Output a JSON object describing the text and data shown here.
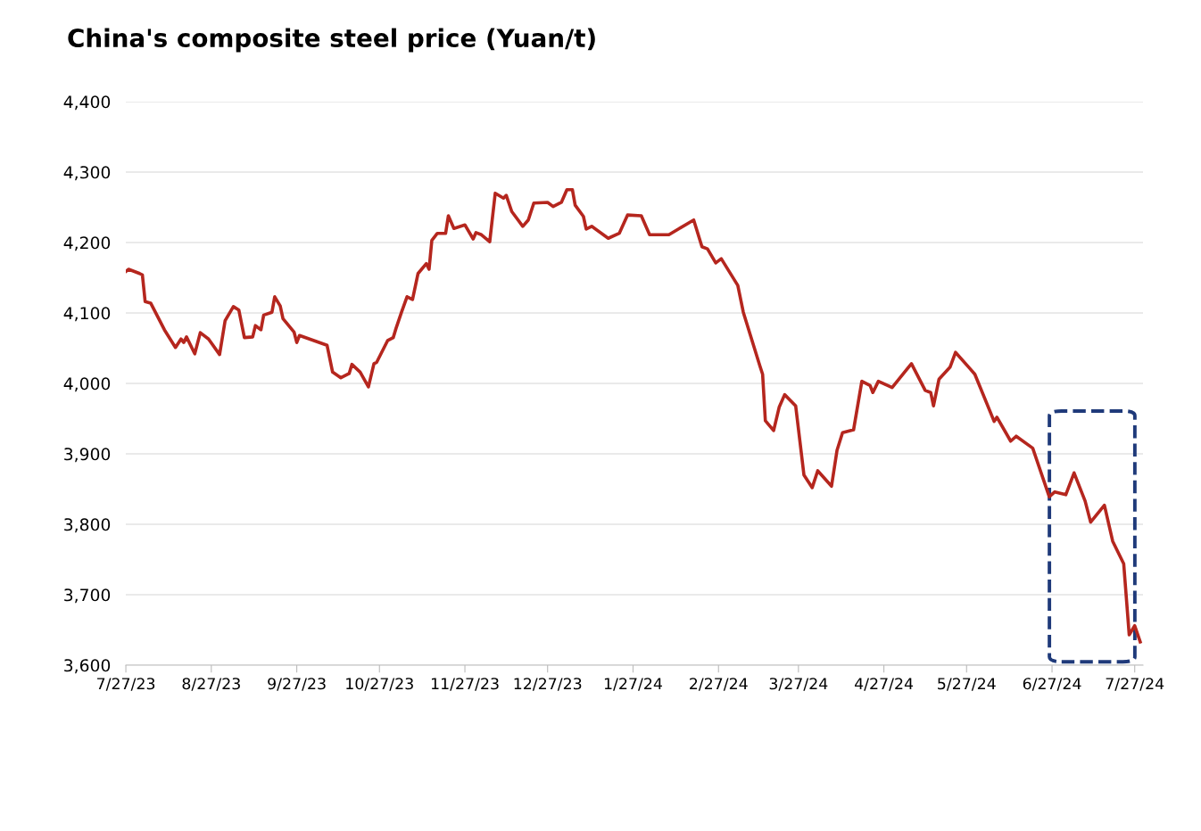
{
  "chart_data": {
    "type": "line",
    "title": "China's composite steel price (Yuan/t)",
    "x": [
      "2023-07-27",
      "2023-07-28",
      "2023-08-01",
      "2023-08-02",
      "2023-08-03",
      "2023-08-05",
      "2023-08-10",
      "2023-08-14",
      "2023-08-16",
      "2023-08-17",
      "2023-08-18",
      "2023-08-21",
      "2023-08-23",
      "2023-08-26",
      "2023-08-30",
      "2023-09-01",
      "2023-09-04",
      "2023-09-06",
      "2023-09-08",
      "2023-09-11",
      "2023-09-12",
      "2023-09-14",
      "2023-09-15",
      "2023-09-18",
      "2023-09-19",
      "2023-09-21",
      "2023-09-22",
      "2023-09-26",
      "2023-09-27",
      "2023-09-28",
      "2023-10-08",
      "2023-10-10",
      "2023-10-13",
      "2023-10-16",
      "2023-10-17",
      "2023-10-20",
      "2023-10-23",
      "2023-10-25",
      "2023-10-26",
      "2023-10-30",
      "2023-11-01",
      "2023-11-02",
      "2023-11-04",
      "2023-11-06",
      "2023-11-08",
      "2023-11-10",
      "2023-11-13",
      "2023-11-14",
      "2023-11-15",
      "2023-11-17",
      "2023-11-20",
      "2023-11-21",
      "2023-11-23",
      "2023-11-27",
      "2023-11-30",
      "2023-12-01",
      "2023-12-03",
      "2023-12-06",
      "2023-12-08",
      "2023-12-11",
      "2023-12-12",
      "2023-12-14",
      "2023-12-18",
      "2023-12-20",
      "2023-12-22",
      "2023-12-27",
      "2023-12-29",
      "2024-01-01",
      "2024-01-03",
      "2024-01-05",
      "2024-01-06",
      "2024-01-09",
      "2024-01-10",
      "2024-01-12",
      "2024-01-18",
      "2024-01-22",
      "2024-01-25",
      "2024-01-30",
      "2024-02-02",
      "2024-02-09",
      "2024-02-18",
      "2024-02-21",
      "2024-02-23",
      "2024-02-26",
      "2024-02-28",
      "2024-03-05",
      "2024-03-07",
      "2024-03-13",
      "2024-03-14",
      "2024-03-15",
      "2024-03-18",
      "2024-03-20",
      "2024-03-22",
      "2024-03-26",
      "2024-03-29",
      "2024-04-01",
      "2024-04-03",
      "2024-04-08",
      "2024-04-10",
      "2024-04-12",
      "2024-04-16",
      "2024-04-19",
      "2024-04-22",
      "2024-04-23",
      "2024-04-25",
      "2024-04-30",
      "2024-05-07",
      "2024-05-12",
      "2024-05-14",
      "2024-05-15",
      "2024-05-17",
      "2024-05-21",
      "2024-05-23",
      "2024-05-28",
      "2024-05-30",
      "2024-06-06",
      "2024-06-07",
      "2024-06-12",
      "2024-06-14",
      "2024-06-20",
      "2024-06-26",
      "2024-06-28",
      "2024-07-02",
      "2024-07-05",
      "2024-07-09",
      "2024-07-11",
      "2024-07-16",
      "2024-07-19",
      "2024-07-23",
      "2024-07-25",
      "2024-07-27",
      "2024-07-29"
    ],
    "series": [
      {
        "color": "#b5261e",
        "values": [
          4159,
          4162,
          4156,
          4154,
          4116,
          4114,
          4076,
          4051,
          4063,
          4058,
          4066,
          4042,
          4072,
          4063,
          4041,
          4089,
          4109,
          4104,
          4065,
          4066,
          4082,
          4076,
          4097,
          4101,
          4123,
          4110,
          4092,
          4073,
          4058,
          4068,
          4054,
          4016,
          4008,
          4014,
          4027,
          4016,
          3995,
          4028,
          4030,
          4061,
          4065,
          4078,
          4101,
          4123,
          4119,
          4156,
          4170,
          4162,
          4203,
          4213,
          4213,
          4238,
          4220,
          4225,
          4205,
          4214,
          4211,
          4201,
          4270,
          4263,
          4267,
          4244,
          4223,
          4232,
          4256,
          4257,
          4251,
          4257,
          4275,
          4275,
          4253,
          4237,
          4219,
          4223,
          4206,
          4213,
          4239,
          4238,
          4211,
          4211,
          4232,
          4194,
          4191,
          4171,
          4177,
          4139,
          4101,
          4025,
          4013,
          3947,
          3933,
          3966,
          3984,
          3968,
          3870,
          3852,
          3876,
          3854,
          3905,
          3930,
          3934,
          4003,
          3997,
          3987,
          4003,
          3994,
          4028,
          3990,
          3987,
          3968,
          4006,
          4023,
          4044,
          4022,
          4013,
          3946,
          3952,
          3918,
          3925,
          3908,
          3839,
          3846,
          3842,
          3873,
          3833,
          3803,
          3827,
          3776,
          3744,
          3643,
          3656,
          3633
        ]
      }
    ],
    "xlim": [
      "2023-07-27",
      "2024-07-30"
    ],
    "xticks": [
      {
        "value": "2023-07-27",
        "label": "7/27/23"
      },
      {
        "value": "2023-08-27",
        "label": "8/27/23"
      },
      {
        "value": "2023-09-27",
        "label": "9/27/23"
      },
      {
        "value": "2023-10-27",
        "label": "10/27/23"
      },
      {
        "value": "2023-11-27",
        "label": "11/27/23"
      },
      {
        "value": "2023-12-27",
        "label": "12/27/23"
      },
      {
        "value": "2024-01-27",
        "label": "1/27/24"
      },
      {
        "value": "2024-02-27",
        "label": "2/27/24"
      },
      {
        "value": "2024-03-27",
        "label": "3/27/24"
      },
      {
        "value": "2024-04-27",
        "label": "4/27/24"
      },
      {
        "value": "2024-05-27",
        "label": "5/27/24"
      },
      {
        "value": "2024-06-27",
        "label": "6/27/24"
      },
      {
        "value": "2024-07-27",
        "label": "7/27/24"
      }
    ],
    "ylim": [
      3600,
      4400
    ],
    "yticks": [
      {
        "value": 3600,
        "label": "3,600"
      },
      {
        "value": 3700,
        "label": "3,700"
      },
      {
        "value": 3800,
        "label": "3,800"
      },
      {
        "value": 3900,
        "label": "3,900"
      },
      {
        "value": 4000,
        "label": "4,000"
      },
      {
        "value": 4100,
        "label": "4,100"
      },
      {
        "value": 4200,
        "label": "4,200"
      },
      {
        "value": 4300,
        "label": "4,300"
      },
      {
        "value": 4400,
        "label": "4,400"
      }
    ],
    "grid": "y",
    "line_style": "solid",
    "marker": "none"
  }
}
